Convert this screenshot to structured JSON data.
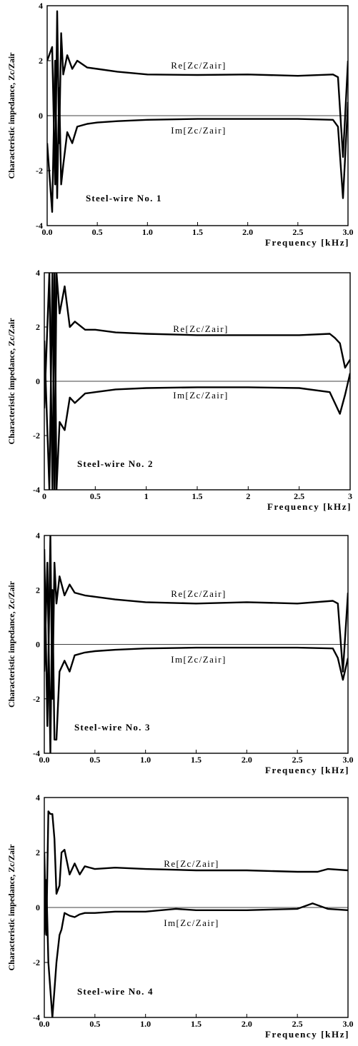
{
  "chart_data": [
    {
      "type": "line",
      "panel_label": "Steel-wire No. 1",
      "xlabel": "Frequency [kHz]",
      "ylabel": "Characteristic impedance, Zc/Zair",
      "xlim": [
        0,
        3.0
      ],
      "ylim": [
        -4,
        4
      ],
      "xticks": [
        "0.0",
        "0.5",
        "1.0",
        "1.5",
        "2.0",
        "2.5",
        "3.0"
      ],
      "yticks": [
        "4",
        "2",
        "0",
        "-2",
        "-4"
      ],
      "series": [
        {
          "name": "Re[Zc/Zair]",
          "x": [
            0.0,
            0.05,
            0.08,
            0.1,
            0.12,
            0.14,
            0.16,
            0.2,
            0.25,
            0.3,
            0.4,
            0.5,
            0.7,
            1.0,
            1.5,
            2.0,
            2.5,
            2.85,
            2.9,
            2.95,
            3.0
          ],
          "y": [
            2.0,
            2.5,
            -2.5,
            3.8,
            -1.0,
            3.0,
            1.5,
            2.2,
            1.7,
            2.0,
            1.75,
            1.7,
            1.6,
            1.5,
            1.48,
            1.5,
            1.45,
            1.5,
            1.4,
            -1.5,
            2.0
          ]
        },
        {
          "name": "Im[Zc/Zair]",
          "x": [
            0.0,
            0.05,
            0.08,
            0.1,
            0.12,
            0.14,
            0.16,
            0.2,
            0.25,
            0.3,
            0.4,
            0.5,
            0.7,
            1.0,
            1.5,
            2.0,
            2.5,
            2.85,
            2.9,
            2.95,
            3.0
          ],
          "y": [
            -1.0,
            -3.5,
            2.0,
            -3.0,
            1.0,
            -2.5,
            -1.8,
            -0.6,
            -1.0,
            -0.4,
            -0.3,
            -0.25,
            -0.2,
            -0.15,
            -0.12,
            -0.12,
            -0.12,
            -0.15,
            -0.4,
            -3.0,
            0.5
          ]
        }
      ]
    },
    {
      "type": "line",
      "panel_label": "Steel-wire No. 2",
      "xlabel": "Frequency [kHz]",
      "ylabel": "Characteristic impedance, Zc/Zair",
      "xlim": [
        0,
        3
      ],
      "ylim": [
        -4,
        4
      ],
      "xticks": [
        "0",
        "0.5",
        "1",
        "1.5",
        "2",
        "2.5",
        "3"
      ],
      "yticks": [
        "4",
        "2",
        "0",
        "-2",
        "-4"
      ],
      "series": [
        {
          "name": "Re[Zc/Zair]",
          "x": [
            0.0,
            0.05,
            0.08,
            0.1,
            0.12,
            0.15,
            0.2,
            0.25,
            0.3,
            0.4,
            0.5,
            0.7,
            1.0,
            1.5,
            2.0,
            2.5,
            2.8,
            2.85,
            2.9,
            2.95,
            3.0
          ],
          "y": [
            1.5,
            -4.0,
            4.0,
            -4.0,
            4.0,
            2.5,
            3.5,
            2.0,
            2.2,
            1.9,
            1.9,
            1.8,
            1.75,
            1.7,
            1.7,
            1.7,
            1.75,
            1.6,
            1.4,
            0.5,
            0.8
          ]
        },
        {
          "name": "Im[Zc/Zair]",
          "x": [
            0.0,
            0.05,
            0.08,
            0.1,
            0.12,
            0.15,
            0.2,
            0.25,
            0.3,
            0.4,
            0.5,
            0.7,
            1.0,
            1.5,
            2.0,
            2.5,
            2.8,
            2.85,
            2.9,
            2.95,
            3.0
          ],
          "y": [
            -1.0,
            4.0,
            -4.0,
            4.0,
            -4.0,
            -1.5,
            -1.8,
            -0.6,
            -0.8,
            -0.45,
            -0.4,
            -0.3,
            -0.25,
            -0.22,
            -0.22,
            -0.25,
            -0.4,
            -0.8,
            -1.2,
            -0.5,
            0.3
          ]
        }
      ]
    },
    {
      "type": "line",
      "panel_label": "Steel-wire No. 3",
      "xlabel": "Frequency [kHz]",
      "ylabel": "Characteristic impedance, Zc/Zair",
      "xlim": [
        0,
        3.0
      ],
      "ylim": [
        -4,
        4
      ],
      "xticks": [
        "0.0",
        "0.5",
        "1.0",
        "1.5",
        "2.0",
        "2.5",
        "3.0"
      ],
      "yticks": [
        "4",
        "2",
        "0",
        "-2",
        "-4"
      ],
      "series": [
        {
          "name": "Re[Zc/Zair]",
          "x": [
            0.0,
            0.03,
            0.06,
            0.08,
            0.1,
            0.12,
            0.15,
            0.2,
            0.25,
            0.3,
            0.4,
            0.5,
            0.7,
            1.0,
            1.5,
            2.0,
            2.5,
            2.85,
            2.9,
            2.95,
            3.0
          ],
          "y": [
            3.5,
            -3.0,
            4.0,
            -2.0,
            3.0,
            1.5,
            2.5,
            1.8,
            2.2,
            1.9,
            1.8,
            1.75,
            1.65,
            1.55,
            1.5,
            1.55,
            1.5,
            1.6,
            1.5,
            -1.0,
            1.9
          ]
        },
        {
          "name": "Im[Zc/Zair]",
          "x": [
            0.0,
            0.03,
            0.06,
            0.08,
            0.1,
            0.12,
            0.15,
            0.2,
            0.25,
            0.3,
            0.4,
            0.5,
            0.7,
            1.0,
            1.5,
            2.0,
            2.5,
            2.85,
            2.9,
            2.95,
            3.0
          ],
          "y": [
            -1.0,
            3.0,
            -4.0,
            2.0,
            -3.5,
            -3.5,
            -1.0,
            -0.6,
            -1.0,
            -0.4,
            -0.3,
            -0.25,
            -0.2,
            -0.15,
            -0.12,
            -0.12,
            -0.12,
            -0.15,
            -0.5,
            -1.3,
            -0.5
          ]
        }
      ]
    },
    {
      "type": "line",
      "panel_label": "Steel-wire No. 4",
      "xlabel": "Frequency [kHz]",
      "ylabel": "Characteristic impedance, Zc/Zair",
      "xlim": [
        0,
        3.0
      ],
      "ylim": [
        -4,
        4
      ],
      "xticks": [
        "0.0",
        "0.5",
        "1.0",
        "1.5",
        "2.0",
        "2.5",
        "3.0"
      ],
      "yticks": [
        "4",
        "2",
        "0",
        "-2",
        "-4"
      ],
      "series": [
        {
          "name": "Re[Zc/Zair]",
          "x": [
            0.0,
            0.02,
            0.04,
            0.06,
            0.08,
            0.1,
            0.12,
            0.15,
            0.17,
            0.2,
            0.25,
            0.3,
            0.35,
            0.4,
            0.5,
            0.7,
            1.0,
            1.5,
            2.0,
            2.5,
            2.6,
            2.7,
            2.8,
            3.0
          ],
          "y": [
            2.0,
            -1.0,
            3.5,
            3.4,
            3.4,
            2.5,
            0.5,
            0.8,
            2.0,
            2.1,
            1.2,
            1.6,
            1.2,
            1.5,
            1.4,
            1.45,
            1.4,
            1.35,
            1.35,
            1.3,
            1.3,
            1.3,
            1.4,
            1.35
          ]
        },
        {
          "name": "Im[Zc/Zair]",
          "x": [
            0.0,
            0.02,
            0.04,
            0.06,
            0.08,
            0.1,
            0.12,
            0.15,
            0.17,
            0.2,
            0.25,
            0.3,
            0.35,
            0.4,
            0.5,
            0.7,
            1.0,
            1.3,
            1.5,
            2.0,
            2.5,
            2.65,
            2.8,
            3.0
          ],
          "y": [
            -1.0,
            1.0,
            -2.0,
            -3.0,
            -4.0,
            -3.0,
            -2.0,
            -1.0,
            -0.8,
            -0.2,
            -0.3,
            -0.35,
            -0.25,
            -0.2,
            -0.2,
            -0.15,
            -0.15,
            -0.05,
            -0.1,
            -0.1,
            -0.05,
            0.15,
            -0.05,
            -0.1
          ]
        }
      ]
    }
  ]
}
